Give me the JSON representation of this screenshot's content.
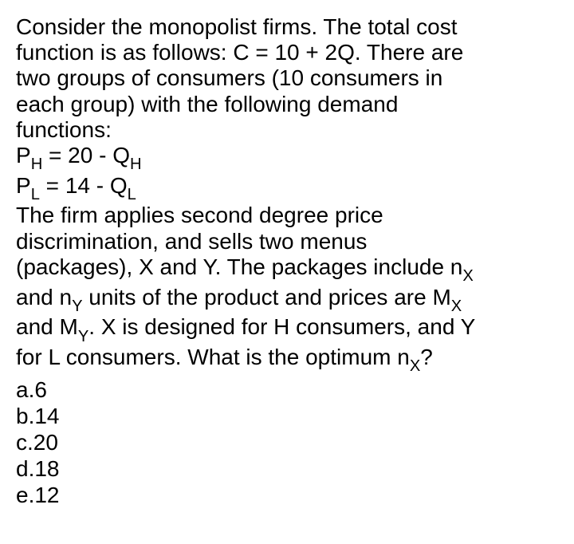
{
  "question": {
    "text_color": "#000000",
    "background_color": "#ffffff",
    "font_size": 28,
    "line1": "Consider the monopolist firms. The total cost",
    "line2a": "function is as follows: C = 10 + 2Q. There are",
    "line3": "two groups of consumers (10 consumers in",
    "line4": "each group) with the following demand",
    "line5": "functions:",
    "eq1_pre": "P",
    "eq1_sub1": "H",
    "eq1_mid": " = 20 - Q",
    "eq1_sub2": "H",
    "eq2_pre": "P",
    "eq2_sub1": "L",
    "eq2_mid": " = 14 - Q",
    "eq2_sub2": "L",
    "line8": "The firm applies second degree price",
    "line9": "discrimination, and sells two menus",
    "line10_a": "(packages), X and Y. The packages include n",
    "line10_sub": "X",
    "line11_a": "and n",
    "line11_sub1": "Y",
    "line11_b": " units of the product and prices are M",
    "line11_sub2": "X",
    "line12_a": "and M",
    "line12_sub": "Y",
    "line12_b": ". X is designed for H consumers, and Y",
    "line13_a": "for L consumers. What is the optimum n",
    "line13_sub": "X",
    "line13_b": "?"
  },
  "options": {
    "a": "a.6",
    "b": "b.14",
    "c": "c.20",
    "d": "d.18",
    "e": "e.12"
  }
}
